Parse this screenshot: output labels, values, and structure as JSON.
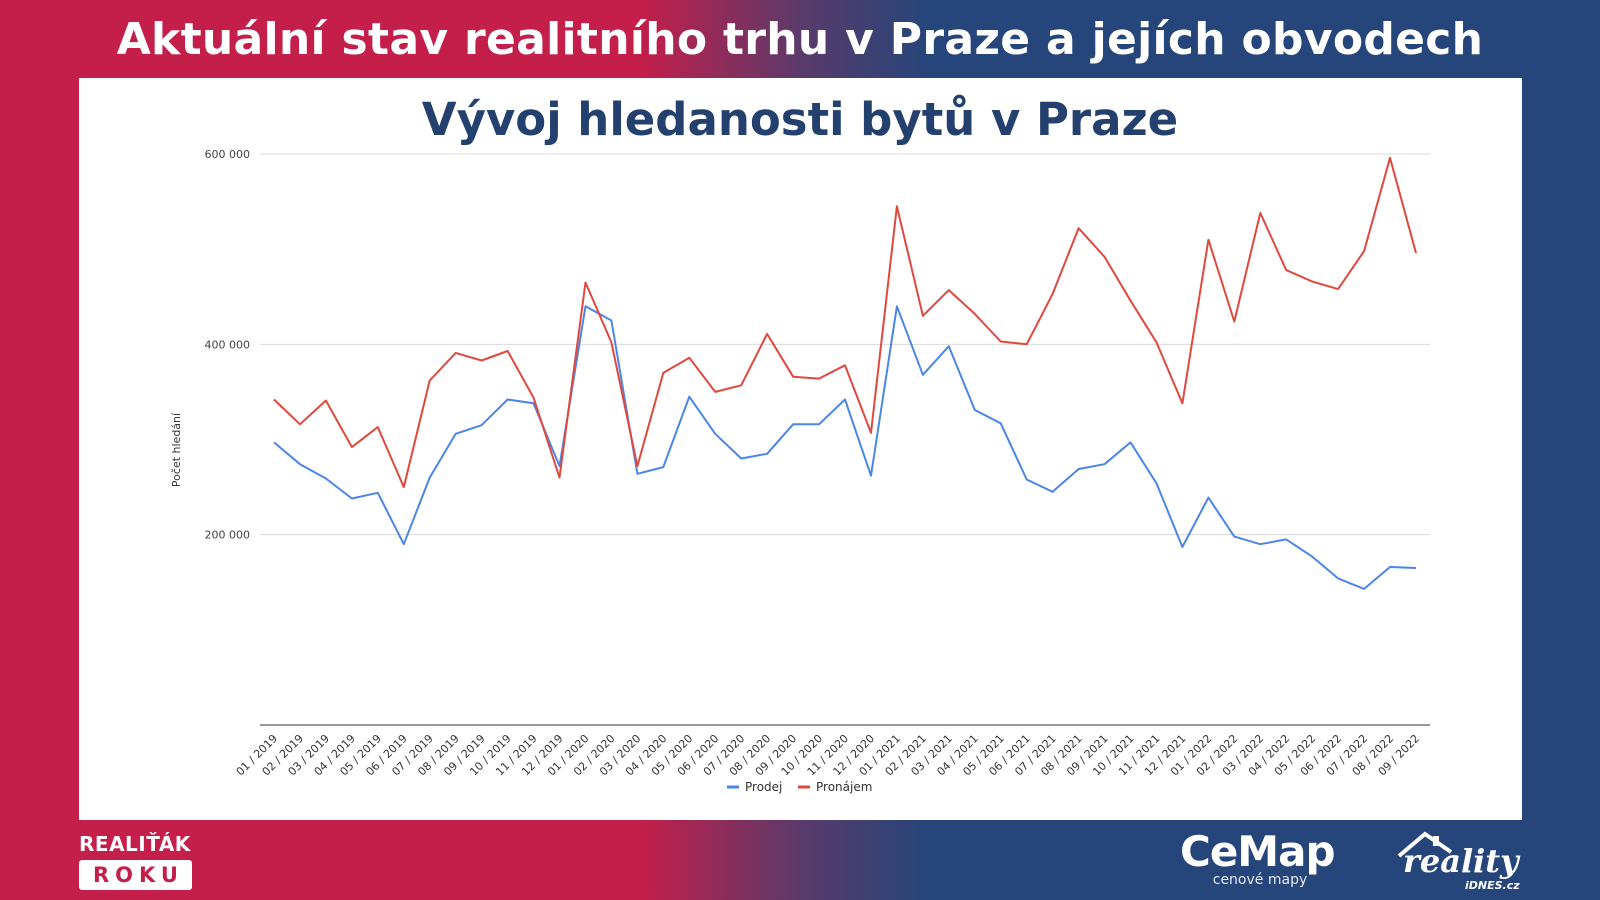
{
  "banner": {
    "title": "Aktuální stav realitního trhu v Praze a jejích obvodech"
  },
  "logos": {
    "realitak_top": "REALIŤÁK",
    "realitak_bottom": "ROKU",
    "cemap_name": "CeMap",
    "cemap_sub": "cenové mapy",
    "reality_name": "reality",
    "reality_sub": "iDNES.cz"
  },
  "colors": {
    "left_background": "#c41e4a",
    "right_background": "#26457a",
    "prodej": "#4a86e8",
    "pronajem": "#e0483e"
  },
  "chart_data": {
    "type": "line",
    "title": "Vývoj hledanosti bytů v Praze",
    "xlabel": "",
    "ylabel": "Počet hledání",
    "ylim": [
      0,
      600000
    ],
    "yticks": [
      200000,
      400000,
      600000
    ],
    "ytick_labels": [
      "200 000",
      "400 000",
      "600 000"
    ],
    "grid": true,
    "legend": "bottom",
    "categories": [
      "01 / 2019",
      "02 / 2019",
      "03 / 2019",
      "04 / 2019",
      "05 / 2019",
      "06 / 2019",
      "07 / 2019",
      "08 / 2019",
      "09 / 2019",
      "10 / 2019",
      "11 / 2019",
      "12 / 2019",
      "01 / 2020",
      "02 / 2020",
      "03 / 2020",
      "04 / 2020",
      "05 / 2020",
      "06 / 2020",
      "07 / 2020",
      "08 / 2020",
      "09 / 2020",
      "10 / 2020",
      "11 / 2020",
      "12 / 2020",
      "01 / 2021",
      "02 / 2021",
      "03 / 2021",
      "04 / 2021",
      "05 / 2021",
      "06 / 2021",
      "07 / 2021",
      "08 / 2021",
      "09 / 2021",
      "10 / 2021",
      "11 / 2021",
      "12 / 2021",
      "01 / 2022",
      "02 / 2022",
      "03 / 2022",
      "04 / 2022",
      "05 / 2022",
      "06 / 2022",
      "07 / 2022",
      "08 / 2022",
      "09 / 2022"
    ],
    "series": [
      {
        "name": "Prodej",
        "color": "#4a86e8",
        "values": [
          297000,
          274000,
          259000,
          238000,
          244000,
          190000,
          260000,
          306000,
          315000,
          342000,
          338000,
          272000,
          440000,
          425000,
          264000,
          271000,
          345000,
          306000,
          280000,
          285000,
          316000,
          316000,
          342000,
          262000,
          440000,
          368000,
          398000,
          331000,
          317000,
          258000,
          245000,
          269000,
          274000,
          297000,
          254000,
          187000,
          239000,
          198000,
          190000,
          195000,
          177000,
          154000,
          143000,
          166000,
          165000
        ]
      },
      {
        "name": "Pronájem",
        "color": "#e0483e",
        "values": [
          342000,
          316000,
          341000,
          292000,
          313000,
          250000,
          362000,
          391000,
          383000,
          393000,
          344000,
          260000,
          465000,
          402000,
          272000,
          370000,
          386000,
          350000,
          357000,
          411000,
          366000,
          364000,
          378000,
          307000,
          545000,
          430000,
          457000,
          432000,
          403000,
          400000,
          453000,
          522000,
          492000,
          446000,
          402000,
          338000,
          510000,
          424000,
          538000,
          478000,
          466000,
          458000,
          498000,
          596000,
          496000
        ]
      }
    ]
  }
}
